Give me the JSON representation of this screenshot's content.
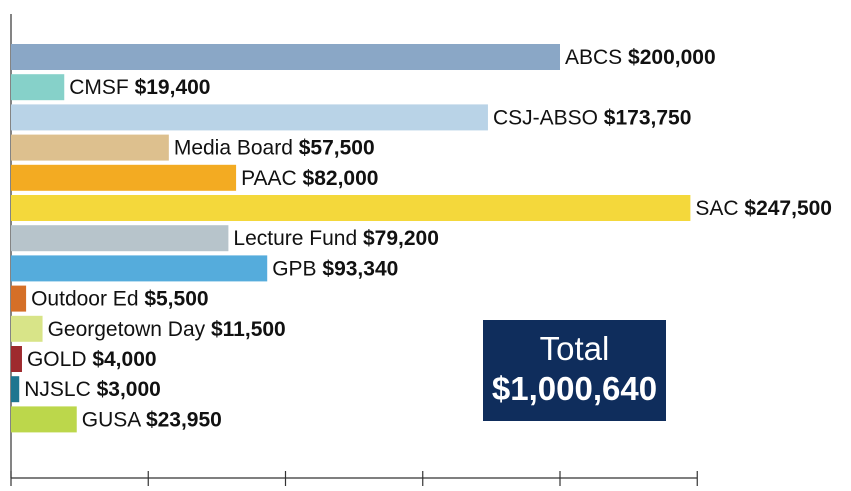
{
  "chart_data": {
    "type": "bar",
    "orientation": "horizontal",
    "categories": [
      "ABCS",
      "CMSF",
      "CSJ-ABSO",
      "Media Board",
      "PAAC",
      "SAC",
      "Lecture Fund",
      "GPB",
      "Outdoor Ed",
      "Georgetown Day",
      "GOLD",
      "NJSLC",
      "GUSA"
    ],
    "values": [
      200000,
      19400,
      173750,
      57500,
      82000,
      247500,
      79200,
      93340,
      5500,
      11500,
      4000,
      3000,
      23950
    ],
    "value_labels": [
      "$200,000",
      "$19,400",
      "$173,750",
      "$57,500",
      "$82,000",
      "$247,500",
      "$79,200",
      "$93,340",
      "$5,500",
      "$11,500",
      "$4,000",
      "$3,000",
      "$23,950"
    ],
    "colors": [
      "#8aa7c6",
      "#86d1c9",
      "#b9d3e7",
      "#ddc08e",
      "#f3ab22",
      "#f4d83b",
      "#b7c4cb",
      "#55acdc",
      "#d56f27",
      "#d8e488",
      "#9e2a2e",
      "#1f7690",
      "#bcd74b"
    ],
    "xlim": [
      0,
      250000
    ],
    "x_ticks": [
      0,
      50000,
      100000,
      150000,
      200000,
      250000
    ],
    "title": "",
    "xlabel": "",
    "ylabel": "",
    "grid": false
  },
  "total": {
    "label": "Total",
    "value": "$1,000,640"
  }
}
